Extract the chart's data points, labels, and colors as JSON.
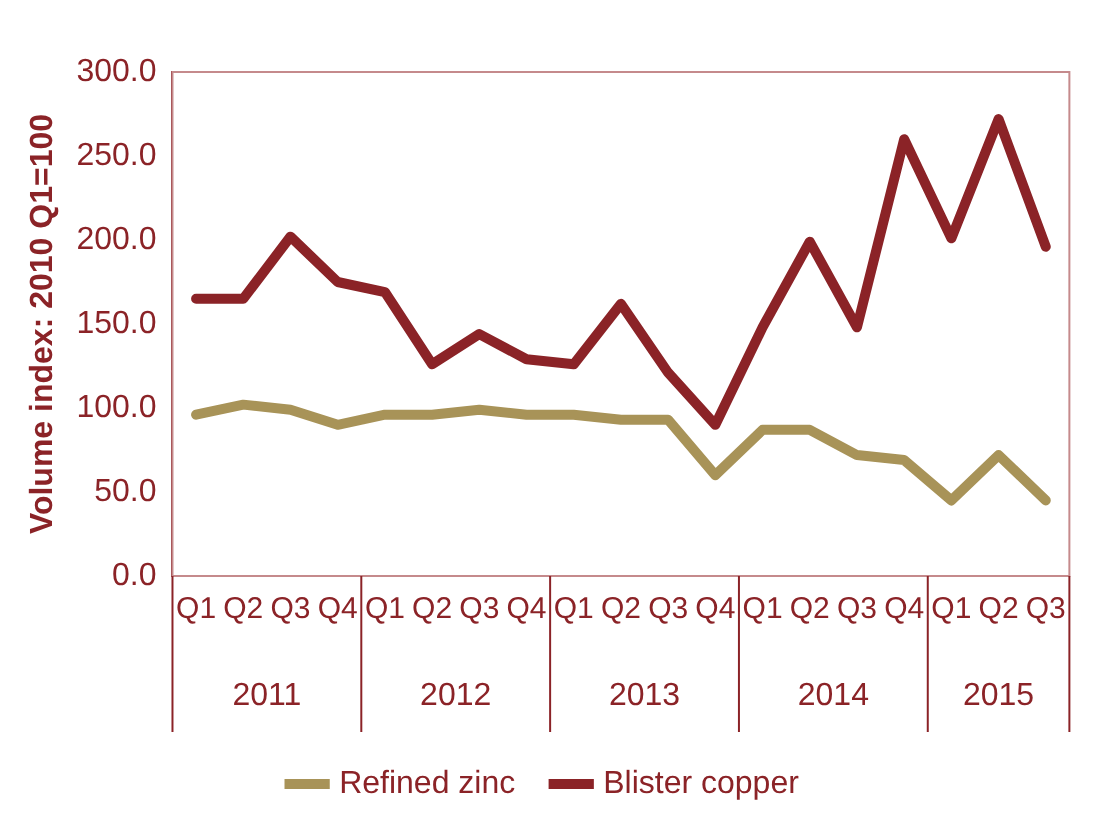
{
  "chart_data": {
    "type": "line",
    "ylabel": "Volume index: 2010 Q1=100",
    "categories": [
      "Q1",
      "Q2",
      "Q3",
      "Q4",
      "Q1",
      "Q2",
      "Q3",
      "Q4",
      "Q1",
      "Q2",
      "Q3",
      "Q4",
      "Q1",
      "Q2",
      "Q3",
      "Q4",
      "Q1",
      "Q2",
      "Q3"
    ],
    "annotations": [
      "2011",
      "2012",
      "2013",
      "2014",
      "2015"
    ],
    "series": [
      {
        "name": "Refined zinc",
        "color": "#a89358",
        "values": [
          96,
          102,
          99,
          90,
          96,
          96,
          99,
          96,
          96,
          93,
          93,
          60,
          87,
          87,
          72,
          69,
          45,
          72,
          45
        ]
      },
      {
        "name": "Blister copper",
        "color": "#8b2327",
        "values": [
          165,
          165,
          202,
          175,
          169,
          126,
          144,
          129,
          126,
          162,
          121,
          90,
          148,
          199,
          148,
          260,
          201,
          272,
          196
        ]
      }
    ],
    "ylim": [
      0,
      300
    ],
    "yticks": [
      {
        "value": 0,
        "label": "0.0"
      },
      {
        "value": 50,
        "label": "50.0"
      },
      {
        "value": 100,
        "label": "100.0"
      },
      {
        "value": 150,
        "label": "150.0"
      },
      {
        "value": 200,
        "label": "200.0"
      },
      {
        "value": 250,
        "label": "250.0"
      },
      {
        "value": 300,
        "label": "300.0"
      }
    ],
    "grid": false,
    "legend": "bottom",
    "marker": "none",
    "line_style": "solid"
  }
}
